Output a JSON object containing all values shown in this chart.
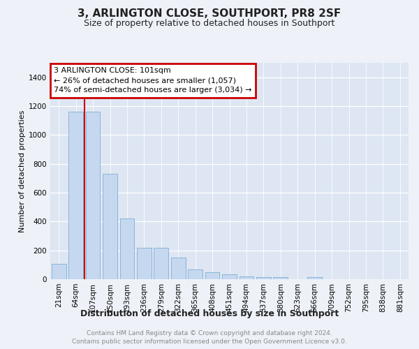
{
  "title1": "3, ARLINGTON CLOSE, SOUTHPORT, PR8 2SF",
  "title2": "Size of property relative to detached houses in Southport",
  "xlabel": "Distribution of detached houses by size in Southport",
  "ylabel": "Number of detached properties",
  "categories": [
    "21sqm",
    "64sqm",
    "107sqm",
    "150sqm",
    "193sqm",
    "236sqm",
    "279sqm",
    "322sqm",
    "365sqm",
    "408sqm",
    "451sqm",
    "494sqm",
    "537sqm",
    "580sqm",
    "623sqm",
    "666sqm",
    "709sqm",
    "752sqm",
    "795sqm",
    "838sqm",
    "881sqm"
  ],
  "values": [
    105,
    1160,
    1160,
    730,
    420,
    220,
    220,
    150,
    70,
    50,
    35,
    20,
    15,
    15,
    0,
    15,
    0,
    0,
    0,
    0,
    0
  ],
  "bar_color": "#c5d8f0",
  "bar_edge_color": "#8ab4d8",
  "vline_x_index": 2,
  "vline_color": "#cc0000",
  "annotation_line1": "3 ARLINGTON CLOSE: 101sqm",
  "annotation_line2": "← 26% of detached houses are smaller (1,057)",
  "annotation_line3": "74% of semi-detached houses are larger (3,034) →",
  "annotation_box_facecolor": "#ffffff",
  "annotation_box_edgecolor": "#cc0000",
  "ylim": [
    0,
    1500
  ],
  "yticks": [
    0,
    200,
    400,
    600,
    800,
    1000,
    1200,
    1400
  ],
  "footer1": "Contains HM Land Registry data © Crown copyright and database right 2024.",
  "footer2": "Contains public sector information licensed under the Open Government Licence v3.0.",
  "fig_bg_color": "#eef2f8",
  "plot_bg_color": "#dde6f2",
  "title1_fontsize": 11,
  "title2_fontsize": 9,
  "ylabel_fontsize": 8,
  "xlabel_fontsize": 9,
  "tick_fontsize": 7.5,
  "footer_fontsize": 6.5,
  "footer_color": "#888888",
  "annot_fontsize": 8
}
